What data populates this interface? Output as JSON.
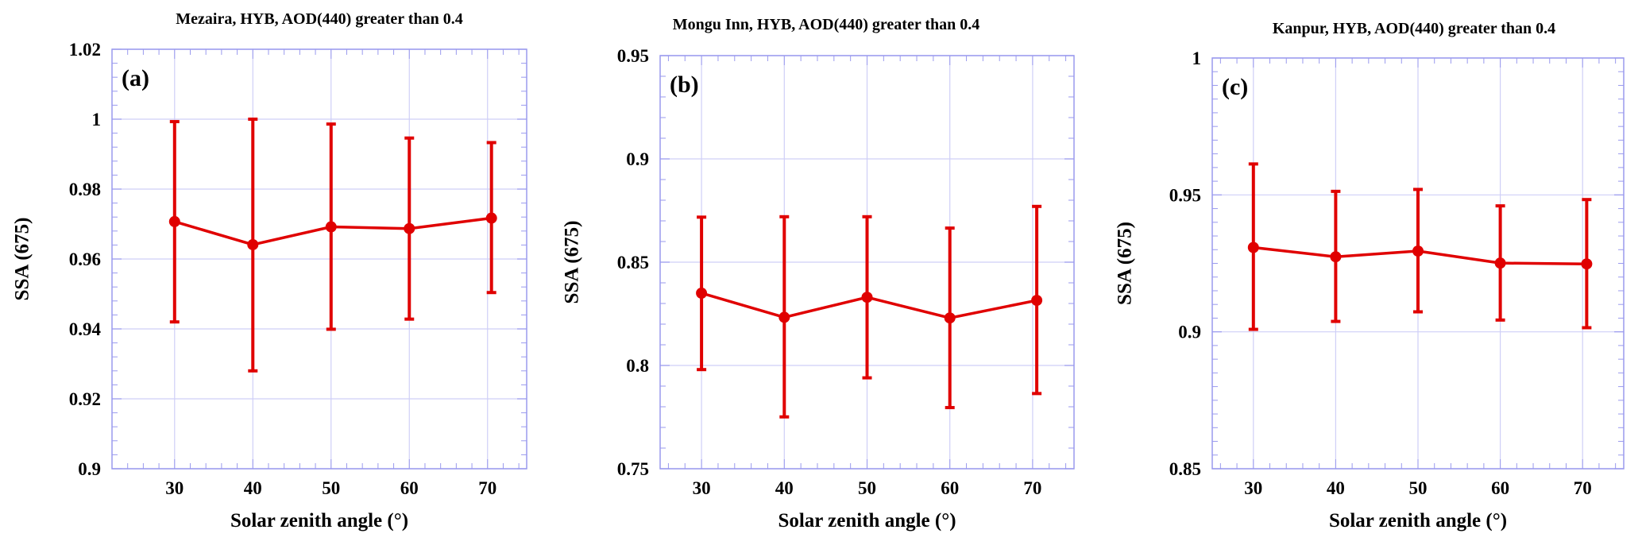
{
  "colors": {
    "series": "#e00000",
    "grid": "#cfcff7",
    "axis": "#9a9aee"
  },
  "chart_data": [
    {
      "type": "line",
      "panel_label": "(a)",
      "title": "Mezaira, HYB, AOD(440) greater than 0.4",
      "xlabel": "Solar zenith angle (°)",
      "ylabel": "SSA (675)",
      "xlim": [
        22,
        75
      ],
      "ylim": [
        0.9,
        1.02
      ],
      "xticks": [
        30,
        40,
        50,
        60,
        70
      ],
      "xtick_labels": [
        "30",
        "40",
        "50",
        "60",
        "70"
      ],
      "yticks": [
        0.9,
        0.92,
        0.94,
        0.96,
        0.98,
        1.0,
        1.02
      ],
      "ytick_labels": [
        "0.9",
        "0.92",
        "0.94",
        "0.96",
        "0.98",
        "1",
        "1.02"
      ],
      "grid": true,
      "x": [
        30,
        40,
        50,
        60,
        70.5
      ],
      "y": [
        0.9707,
        0.9641,
        0.9692,
        0.9687,
        0.9717
      ],
      "y_upper": [
        0.9993,
        1.0,
        0.9986,
        0.9946,
        0.9933
      ],
      "y_lower": [
        0.942,
        0.928,
        0.9399,
        0.9428,
        0.9504
      ]
    },
    {
      "type": "line",
      "panel_label": "(b)",
      "title": "Mongu Inn, HYB, AOD(440) greater than 0.4",
      "xlabel": "Solar zenith angle (°)",
      "ylabel": "SSA (675)",
      "xlim": [
        25,
        75
      ],
      "ylim": [
        0.75,
        0.95
      ],
      "xticks": [
        30,
        40,
        50,
        60,
        70
      ],
      "xtick_labels": [
        "30",
        "40",
        "50",
        "60",
        "70"
      ],
      "yticks": [
        0.75,
        0.8,
        0.85,
        0.9,
        0.95
      ],
      "ytick_labels": [
        "0.75",
        "0.8",
        "0.85",
        "0.9",
        "0.95"
      ],
      "grid": true,
      "x": [
        30,
        40,
        50,
        60,
        70.5
      ],
      "y": [
        0.835,
        0.8233,
        0.833,
        0.823,
        0.8315
      ],
      "y_upper": [
        0.8718,
        0.872,
        0.872,
        0.8665,
        0.877
      ],
      "y_lower": [
        0.798,
        0.7751,
        0.794,
        0.7796,
        0.7864
      ]
    },
    {
      "type": "line",
      "panel_label": "(c)",
      "title": "Kanpur, HYB, AOD(440) greater than 0.4",
      "xlabel": "Solar zenith angle (°)",
      "ylabel": "SSA (675)",
      "xlim": [
        25,
        75
      ],
      "ylim": [
        0.85,
        1.0
      ],
      "xticks": [
        30,
        40,
        50,
        60,
        70
      ],
      "xtick_labels": [
        "30",
        "40",
        "50",
        "60",
        "70"
      ],
      "yticks": [
        0.85,
        0.9,
        0.95,
        1.0
      ],
      "ytick_labels": [
        "0.85",
        "0.9",
        "0.95",
        "1"
      ],
      "grid": true,
      "x": [
        30,
        40,
        50,
        60,
        70.5
      ],
      "y": [
        0.9308,
        0.9274,
        0.9295,
        0.9251,
        0.9248
      ],
      "y_upper": [
        0.9613,
        0.9513,
        0.952,
        0.946,
        0.9483
      ],
      "y_lower": [
        0.9009,
        0.9038,
        0.9073,
        0.9043,
        0.9015
      ]
    }
  ]
}
